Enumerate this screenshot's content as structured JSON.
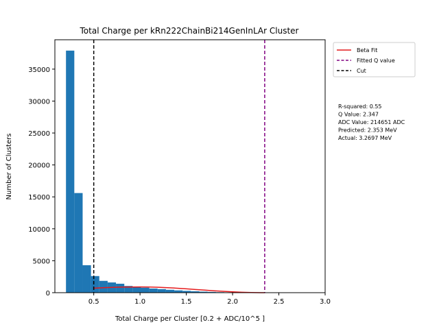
{
  "chart_data": {
    "type": "bar",
    "title": "Total Charge per kRn222ChainBi214GenInLAr Cluster",
    "xlabel": "Total Charge per Cluster [0.2 + ADC/10^5 ]",
    "ylabel": "Number of Clusters",
    "xlim": [
      0.08,
      3.0
    ],
    "ylim": [
      0,
      39600
    ],
    "x_ticks": [
      0.5,
      1.0,
      1.5,
      2.0,
      2.5,
      3.0
    ],
    "x_tick_labels": [
      "0.5",
      "1.0",
      "1.5",
      "2.0",
      "2.5",
      "3.0"
    ],
    "y_ticks": [
      0,
      5000,
      10000,
      15000,
      20000,
      25000,
      30000,
      35000
    ],
    "y_tick_labels": [
      "0",
      "5000",
      "10000",
      "15000",
      "20000",
      "25000",
      "30000",
      "35000"
    ],
    "histogram": {
      "color": "#1f77b4",
      "bins": [
        {
          "x0": 0.2,
          "x1": 0.29,
          "count": 37900
        },
        {
          "x0": 0.29,
          "x1": 0.38,
          "count": 15600
        },
        {
          "x0": 0.38,
          "x1": 0.47,
          "count": 4300
        },
        {
          "x0": 0.47,
          "x1": 0.56,
          "count": 2600
        },
        {
          "x0": 0.56,
          "x1": 0.65,
          "count": 1850
        },
        {
          "x0": 0.65,
          "x1": 0.74,
          "count": 1600
        },
        {
          "x0": 0.74,
          "x1": 0.83,
          "count": 1400
        },
        {
          "x0": 0.83,
          "x1": 0.92,
          "count": 1050
        },
        {
          "x0": 0.92,
          "x1": 1.01,
          "count": 900
        },
        {
          "x0": 1.01,
          "x1": 1.1,
          "count": 780
        },
        {
          "x0": 1.1,
          "x1": 1.19,
          "count": 650
        },
        {
          "x0": 1.19,
          "x1": 1.28,
          "count": 560
        },
        {
          "x0": 1.28,
          "x1": 1.37,
          "count": 450
        },
        {
          "x0": 1.37,
          "x1": 1.46,
          "count": 360
        },
        {
          "x0": 1.46,
          "x1": 1.55,
          "count": 280
        },
        {
          "x0": 1.55,
          "x1": 1.64,
          "count": 220
        },
        {
          "x0": 1.64,
          "x1": 1.73,
          "count": 160
        },
        {
          "x0": 1.73,
          "x1": 1.82,
          "count": 120
        },
        {
          "x0": 1.82,
          "x1": 1.91,
          "count": 80
        },
        {
          "x0": 1.91,
          "x1": 2.0,
          "count": 55
        },
        {
          "x0": 2.0,
          "x1": 2.09,
          "count": 35
        },
        {
          "x0": 2.09,
          "x1": 2.18,
          "count": 20
        },
        {
          "x0": 2.18,
          "x1": 2.27,
          "count": 10
        }
      ]
    },
    "series": [
      {
        "name": "Beta Fit",
        "type": "line",
        "color": "#e41a1c",
        "x": [
          0.5,
          0.6,
          0.7,
          0.8,
          0.9,
          1.0,
          1.1,
          1.2,
          1.3,
          1.4,
          1.5,
          1.6,
          1.7,
          1.8,
          1.9,
          2.0,
          2.1,
          2.2,
          2.3,
          2.35
        ],
        "y": [
          700,
          780,
          830,
          870,
          890,
          900,
          880,
          840,
          780,
          700,
          600,
          500,
          400,
          300,
          210,
          130,
          70,
          25,
          5,
          0
        ]
      },
      {
        "name": "Fitted Q value",
        "type": "vline",
        "x": 2.347,
        "color": "#800080",
        "dash": "dashed"
      },
      {
        "name": "Cut",
        "type": "vline",
        "x": 0.5,
        "color": "#000000",
        "dash": "dashed"
      }
    ],
    "legend": {
      "position": "outside-top-right",
      "entries": [
        {
          "label": "Beta Fit",
          "color": "#e41a1c",
          "style": "solid"
        },
        {
          "label": "Fitted Q value",
          "color": "#800080",
          "style": "dashed"
        },
        {
          "label": "Cut",
          "color": "#000000",
          "style": "dashed"
        }
      ]
    },
    "annotation": [
      "R-squared: 0.55",
      "Q Value: 2.347",
      "ADC Value: 214651 ADC",
      "Predicted: 2.353 MeV",
      "Actual: 3.2697 MeV"
    ]
  }
}
